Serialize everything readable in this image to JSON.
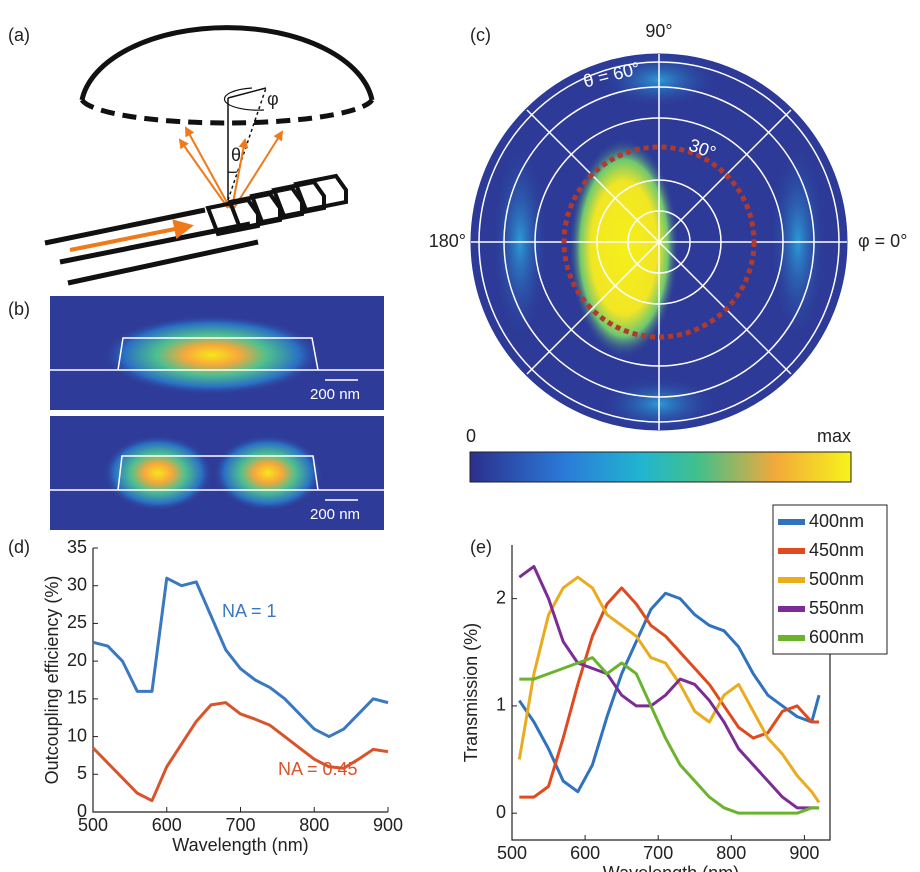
{
  "panel_labels": [
    "(a)",
    "(b)",
    "(c)",
    "(d)",
    "(e)"
  ],
  "diagram": {
    "phi": "φ",
    "theta": "θ"
  },
  "mode_profiles": {
    "scale_bars": [
      "200 nm",
      "200 nm"
    ]
  },
  "polar_map": {
    "top_label": "90°",
    "left_label": "180°",
    "right_label": "φ = 0°",
    "outer_ring_label": "θ = 60°",
    "inner_ring_label": "30°",
    "colorbar_min": "0",
    "colorbar_max": "max"
  },
  "chart_data": [
    {
      "type": "line",
      "x_label": "Wavelength (nm)",
      "y_label": "Outcoupling efficiency (%)",
      "x": [
        500,
        520,
        540,
        560,
        580,
        600,
        620,
        640,
        660,
        680,
        700,
        720,
        740,
        760,
        780,
        800,
        820,
        840,
        860,
        880,
        900
      ],
      "series": [
        {
          "name": "NA = 1",
          "color": "#3b78c2",
          "values": [
            22.5,
            22,
            20,
            16,
            16,
            31,
            30,
            30.5,
            26,
            21.5,
            19,
            17.5,
            16.5,
            15,
            13,
            11,
            10,
            11,
            13,
            15,
            14.5
          ]
        },
        {
          "name": "NA = 0.45",
          "color": "#d9542b",
          "values": [
            8.5,
            6.5,
            4.5,
            2.5,
            1.5,
            6,
            9,
            12,
            14.2,
            14.5,
            13,
            12.3,
            11.5,
            10,
            8.5,
            7,
            6,
            5.8,
            7,
            8.3,
            8
          ]
        }
      ],
      "xlim": [
        500,
        900
      ],
      "xticks": [
        500,
        600,
        700,
        800,
        900
      ],
      "ylim": [
        0,
        35
      ],
      "yticks": [
        0,
        5,
        10,
        15,
        20,
        25,
        30,
        35
      ]
    },
    {
      "type": "line",
      "x_label": "Wavelength (nm)",
      "y_label": "Transmission (%)",
      "x": [
        510,
        530,
        550,
        570,
        590,
        610,
        630,
        650,
        670,
        690,
        710,
        730,
        750,
        770,
        790,
        810,
        830,
        850,
        870,
        890,
        910,
        920
      ],
      "series": [
        {
          "name": "400nm",
          "color": "#2f72bd",
          "values": [
            1.05,
            0.85,
            0.6,
            0.3,
            0.2,
            0.45,
            0.9,
            1.3,
            1.6,
            1.9,
            2.05,
            2.0,
            1.85,
            1.75,
            1.7,
            1.55,
            1.3,
            1.1,
            1.0,
            0.9,
            0.85,
            1.1
          ]
        },
        {
          "name": "450nm",
          "color": "#e04a1f",
          "values": [
            0.15,
            0.15,
            0.25,
            0.7,
            1.2,
            1.65,
            1.95,
            2.1,
            1.95,
            1.75,
            1.65,
            1.5,
            1.35,
            1.2,
            1.0,
            0.8,
            0.7,
            0.75,
            0.95,
            1.0,
            0.85,
            0.85
          ]
        },
        {
          "name": "500nm",
          "color": "#eaac1e",
          "values": [
            0.5,
            1.3,
            1.85,
            2.1,
            2.2,
            2.1,
            1.85,
            1.75,
            1.65,
            1.45,
            1.4,
            1.2,
            0.95,
            0.85,
            1.1,
            1.2,
            0.95,
            0.7,
            0.55,
            0.35,
            0.2,
            0.1
          ]
        },
        {
          "name": "550nm",
          "color": "#7b2d95",
          "values": [
            2.2,
            2.3,
            2.0,
            1.6,
            1.4,
            1.35,
            1.3,
            1.1,
            1.0,
            1.0,
            1.1,
            1.25,
            1.2,
            1.05,
            0.85,
            0.6,
            0.45,
            0.3,
            0.15,
            0.05,
            0.05,
            0.05
          ]
        },
        {
          "name": "600nm",
          "color": "#6ab42d",
          "values": [
            1.25,
            1.25,
            1.3,
            1.35,
            1.4,
            1.45,
            1.3,
            1.4,
            1.3,
            1.0,
            0.7,
            0.45,
            0.3,
            0.15,
            0.05,
            0,
            0,
            0,
            0,
            0,
            0.05,
            0.05
          ]
        }
      ],
      "legend": "top-right",
      "xlim": [
        500,
        935
      ],
      "xticks": [
        500,
        600,
        700,
        800,
        900
      ],
      "ylim": [
        -0.25,
        2.5
      ],
      "yticks": [
        0,
        1,
        2
      ]
    }
  ]
}
